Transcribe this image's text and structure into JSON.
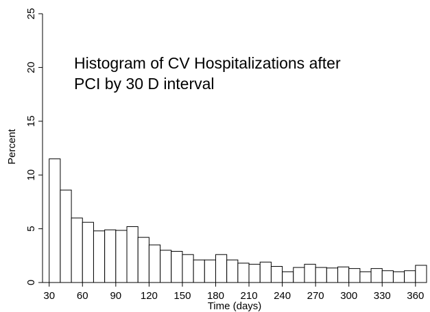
{
  "chart_data": {
    "type": "histogram",
    "annotation": [
      "Histogram of CV Hospitalizations after",
      "PCI by 30 D interval"
    ],
    "x_label": "Time (days)",
    "y_label": "Percent",
    "bins": [
      30,
      40,
      50,
      60,
      70,
      80,
      90,
      100,
      110,
      120,
      130,
      140,
      150,
      160,
      170,
      180,
      190,
      200,
      210,
      220,
      230,
      240,
      250,
      260,
      270,
      280,
      290,
      300,
      310,
      320,
      330,
      340,
      350,
      360,
      370
    ],
    "values": [
      11.5,
      8.6,
      6.0,
      5.6,
      4.8,
      4.9,
      4.85,
      5.2,
      4.2,
      3.5,
      3.0,
      2.9,
      2.6,
      2.1,
      2.1,
      2.6,
      2.1,
      1.8,
      1.7,
      1.9,
      1.5,
      1.0,
      1.4,
      1.7,
      1.4,
      1.35,
      1.45,
      1.3,
      1.0,
      1.3,
      1.1,
      1.0,
      1.1,
      1.6
    ],
    "color": "#ffffff",
    "edge_color": "#000000",
    "xlim": [
      24,
      370
    ],
    "xticks": [
      30,
      60,
      90,
      120,
      150,
      180,
      210,
      240,
      270,
      300,
      330,
      360
    ],
    "ylim": [
      0,
      25
    ],
    "yticks": [
      0,
      5,
      10,
      15,
      20,
      25
    ]
  }
}
